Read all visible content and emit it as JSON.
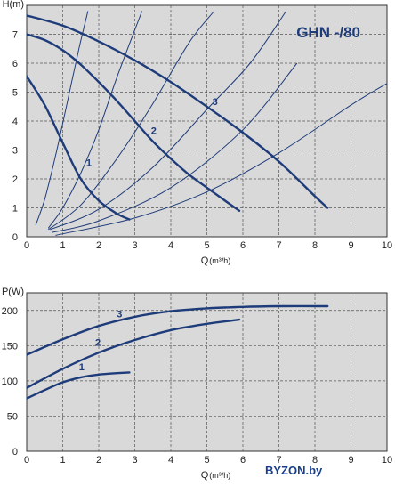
{
  "watermark": "BYZON.by",
  "chart_data": [
    {
      "type": "line",
      "title": "GHN -/80",
      "ylabel": "H(m)",
      "xlabel": "Q",
      "xunit": "(m³/h)",
      "xlim": [
        0,
        10
      ],
      "ylim": [
        0,
        8
      ],
      "xticks": [
        "0",
        "1",
        "2",
        "3",
        "4",
        "5",
        "6",
        "7",
        "8",
        "9",
        "10"
      ],
      "yticks": [
        "0",
        "1",
        "2",
        "3",
        "4",
        "5",
        "6",
        "7"
      ],
      "grid": true,
      "series": [
        {
          "name": "1",
          "x": [
            0.0,
            0.5,
            1.0,
            1.5,
            2.0,
            2.5,
            2.85
          ],
          "y": [
            5.55,
            4.55,
            3.25,
            2.0,
            1.25,
            0.8,
            0.6
          ]
        },
        {
          "name": "2",
          "x": [
            0.0,
            0.5,
            1.0,
            1.5,
            2.0,
            2.5,
            3.0,
            3.5,
            4.0,
            4.5,
            5.0,
            5.5,
            5.9
          ],
          "y": [
            7.0,
            6.8,
            6.45,
            5.95,
            5.35,
            4.7,
            4.0,
            3.3,
            2.7,
            2.15,
            1.7,
            1.25,
            0.9
          ]
        },
        {
          "name": "3",
          "x": [
            0.0,
            1.0,
            2.0,
            3.0,
            4.0,
            5.0,
            6.0,
            7.0,
            8.0,
            8.35
          ],
          "y": [
            7.65,
            7.3,
            6.75,
            6.1,
            5.35,
            4.5,
            3.6,
            2.6,
            1.4,
            1.0
          ]
        }
      ],
      "system_curves": [
        {
          "x": [
            0.25,
            0.5,
            0.8,
            1.1,
            1.45,
            1.7
          ],
          "y": [
            0.4,
            1.3,
            2.8,
            4.5,
            6.5,
            7.8
          ]
        },
        {
          "x": [
            0.6,
            1.0,
            1.5,
            2.0,
            2.5,
            3.2
          ],
          "y": [
            0.3,
            1.0,
            2.2,
            3.7,
            5.5,
            7.8
          ]
        },
        {
          "x": [
            0.6,
            1.5,
            2.5,
            3.5,
            4.5,
            5.2
          ],
          "y": [
            0.25,
            1.1,
            2.7,
            4.6,
            6.7,
            7.8
          ]
        },
        {
          "x": [
            0.65,
            2.0,
            3.5,
            5.0,
            6.2,
            7.2
          ],
          "y": [
            0.25,
            0.95,
            2.4,
            4.4,
            6.0,
            7.8
          ]
        },
        {
          "x": [
            0.7,
            2.0,
            4.0,
            6.0,
            7.5
          ],
          "y": [
            0.15,
            0.55,
            1.7,
            3.7,
            6.0
          ]
        },
        {
          "x": [
            0.8,
            3.0,
            5.0,
            7.0,
            9.0,
            10.0
          ],
          "y": [
            0.05,
            0.65,
            1.55,
            2.9,
            4.55,
            5.3
          ]
        }
      ]
    },
    {
      "type": "line",
      "title": "",
      "ylabel": "P(W)",
      "xlabel": "Q",
      "xunit": "(m³/h)",
      "xlim": [
        0,
        10
      ],
      "ylim": [
        0,
        225
      ],
      "xticks": [
        "0",
        "1",
        "2",
        "3",
        "4",
        "5",
        "6",
        "7",
        "8",
        "9",
        "10"
      ],
      "yticks": [
        "0",
        "50",
        "100",
        "150",
        "200"
      ],
      "grid": true,
      "series": [
        {
          "name": "1",
          "x": [
            0.0,
            0.5,
            1.0,
            1.5,
            2.0,
            2.5,
            2.85
          ],
          "y": [
            75,
            87,
            98,
            105,
            109,
            111,
            112
          ]
        },
        {
          "name": "2",
          "x": [
            0.0,
            1.0,
            2.0,
            3.0,
            4.0,
            5.0,
            5.9
          ],
          "y": [
            90,
            117,
            140,
            158,
            172,
            181,
            187
          ]
        },
        {
          "name": "3",
          "x": [
            0.0,
            1.0,
            2.0,
            3.0,
            4.0,
            5.0,
            6.0,
            7.0,
            8.35
          ],
          "y": [
            137,
            159,
            178,
            191,
            199,
            203,
            205,
            206,
            206
          ]
        }
      ]
    }
  ]
}
